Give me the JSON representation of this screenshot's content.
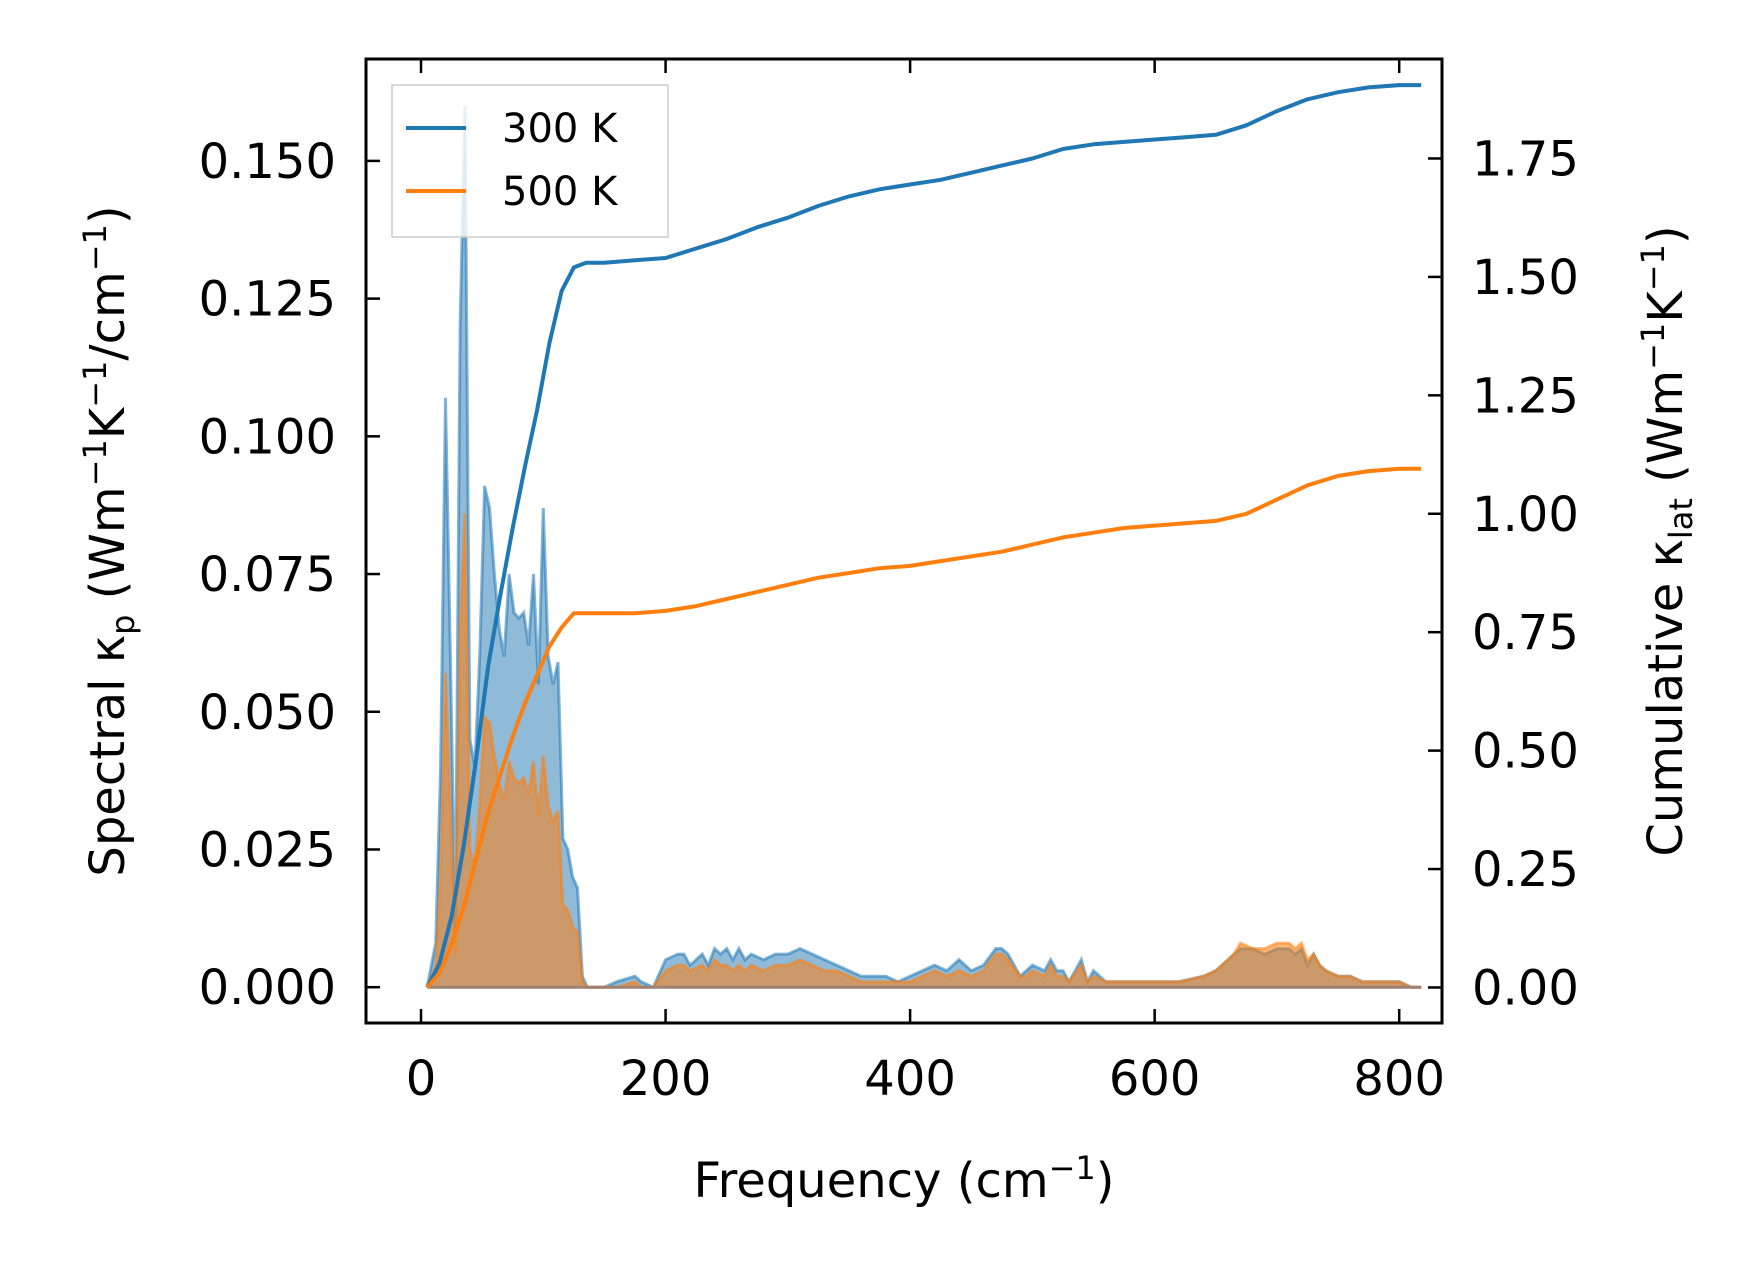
{
  "chart_data": {
    "type": "line",
    "xlabel": {
      "main": "Frequency (cm",
      "sup": "−1",
      "end": ")"
    },
    "ylabel_left": {
      "a": "Spectral κ",
      "sub_p": "p",
      "b": " (Wm",
      "sup1": "−1",
      "c": "K",
      "sup2": "−1",
      "d": "/cm",
      "sup3": "−1",
      "e": ")"
    },
    "ylabel_right": {
      "a": "Cumulative κ",
      "sub_lat": "lat",
      "b": " (Wm",
      "sup1": "−1",
      "c": "K",
      "sup2": "−1",
      "d": ")"
    },
    "xlim": [
      -45,
      835
    ],
    "ylim_left": [
      -0.0065,
      0.1685
    ],
    "ylim_right": [
      -0.075,
      1.96
    ],
    "x_ticks": [
      0,
      200,
      400,
      600,
      800
    ],
    "x_tick_labels": [
      "0",
      "200",
      "400",
      "600",
      "800"
    ],
    "y_left_ticks": [
      0.0,
      0.025,
      0.05,
      0.075,
      0.1,
      0.125,
      0.15
    ],
    "y_left_tick_labels": [
      "0.000",
      "0.025",
      "0.050",
      "0.075",
      "0.100",
      "0.125",
      "0.150"
    ],
    "y_right_ticks": [
      0.0,
      0.25,
      0.5,
      0.75,
      1.0,
      1.25,
      1.5,
      1.75
    ],
    "y_right_tick_labels": [
      "0.00",
      "0.25",
      "0.50",
      "0.75",
      "1.00",
      "1.25",
      "1.50",
      "1.75"
    ],
    "legend": {
      "position": "upper-left",
      "entries": [
        "300 K",
        "500 K"
      ]
    },
    "series": [
      {
        "name": "300 K",
        "color": "#1f77b4",
        "spectral": {
          "x": [
            5,
            12,
            16,
            20,
            24,
            28,
            32,
            36,
            40,
            44,
            48,
            52,
            56,
            60,
            64,
            68,
            72,
            76,
            80,
            84,
            88,
            92,
            96,
            100,
            104,
            108,
            112,
            116,
            120,
            124,
            128,
            132,
            136,
            140,
            150,
            160,
            175,
            180,
            190,
            200,
            210,
            215,
            220,
            230,
            235,
            240,
            245,
            250,
            255,
            260,
            265,
            270,
            280,
            290,
            300,
            310,
            320,
            330,
            340,
            350,
            360,
            370,
            380,
            390,
            400,
            410,
            420,
            430,
            440,
            450,
            460,
            470,
            475,
            480,
            490,
            495,
            500,
            510,
            515,
            520,
            525,
            530,
            540,
            545,
            550,
            560,
            580,
            600,
            620,
            640,
            650,
            660,
            665,
            670,
            680,
            690,
            700,
            710,
            715,
            720,
            725,
            730,
            735,
            740,
            750,
            760,
            770,
            780,
            790,
            800,
            810,
            818
          ],
          "y": [
            0.0,
            0.008,
            0.04,
            0.107,
            0.06,
            0.01,
            0.12,
            0.16,
            0.045,
            0.04,
            0.06,
            0.091,
            0.087,
            0.075,
            0.065,
            0.06,
            0.075,
            0.068,
            0.067,
            0.068,
            0.062,
            0.075,
            0.055,
            0.087,
            0.06,
            0.055,
            0.059,
            0.027,
            0.025,
            0.02,
            0.018,
            0.002,
            0.0,
            0.0,
            0.0,
            0.001,
            0.002,
            0.001,
            0.0,
            0.005,
            0.006,
            0.006,
            0.004,
            0.006,
            0.004,
            0.007,
            0.006,
            0.007,
            0.005,
            0.007,
            0.005,
            0.006,
            0.005,
            0.006,
            0.006,
            0.007,
            0.006,
            0.005,
            0.004,
            0.003,
            0.002,
            0.002,
            0.002,
            0.001,
            0.002,
            0.003,
            0.004,
            0.003,
            0.005,
            0.003,
            0.004,
            0.007,
            0.007,
            0.006,
            0.002,
            0.003,
            0.004,
            0.003,
            0.005,
            0.003,
            0.003,
            0.001,
            0.005,
            0.001,
            0.003,
            0.001,
            0.001,
            0.001,
            0.001,
            0.002,
            0.003,
            0.005,
            0.006,
            0.007,
            0.007,
            0.006,
            0.007,
            0.007,
            0.006,
            0.007,
            0.004,
            0.006,
            0.004,
            0.003,
            0.002,
            0.002,
            0.001,
            0.001,
            0.001,
            0.001,
            0.0,
            0.0
          ]
        },
        "cumulative": {
          "x": [
            5,
            15,
            25,
            35,
            45,
            55,
            65,
            75,
            85,
            95,
            105,
            115,
            125,
            135,
            150,
            175,
            200,
            225,
            250,
            275,
            300,
            325,
            350,
            375,
            400,
            425,
            450,
            475,
            500,
            525,
            550,
            575,
            600,
            625,
            650,
            675,
            700,
            725,
            750,
            775,
            800,
            818
          ],
          "y": [
            0.0,
            0.05,
            0.15,
            0.3,
            0.48,
            0.68,
            0.83,
            0.97,
            1.1,
            1.22,
            1.36,
            1.47,
            1.52,
            1.53,
            1.53,
            1.535,
            1.54,
            1.56,
            1.58,
            1.605,
            1.625,
            1.65,
            1.67,
            1.685,
            1.695,
            1.705,
            1.72,
            1.735,
            1.75,
            1.77,
            1.78,
            1.785,
            1.79,
            1.795,
            1.8,
            1.82,
            1.85,
            1.875,
            1.89,
            1.9,
            1.905,
            1.905
          ]
        }
      },
      {
        "name": "500 K",
        "color": "#ff7f0e",
        "spectral": {
          "x": [
            5,
            12,
            16,
            20,
            24,
            28,
            32,
            36,
            40,
            44,
            48,
            52,
            56,
            60,
            64,
            68,
            72,
            76,
            80,
            84,
            88,
            92,
            96,
            100,
            104,
            108,
            112,
            116,
            120,
            124,
            128,
            132,
            136,
            140,
            150,
            160,
            175,
            180,
            190,
            200,
            210,
            215,
            220,
            230,
            235,
            240,
            245,
            250,
            255,
            260,
            265,
            270,
            280,
            290,
            300,
            310,
            320,
            330,
            340,
            350,
            360,
            370,
            380,
            390,
            400,
            410,
            420,
            430,
            440,
            450,
            460,
            470,
            475,
            480,
            490,
            495,
            500,
            510,
            515,
            520,
            525,
            530,
            540,
            545,
            550,
            560,
            580,
            600,
            620,
            640,
            650,
            660,
            665,
            670,
            680,
            690,
            700,
            710,
            715,
            720,
            725,
            730,
            735,
            740,
            750,
            760,
            770,
            780,
            790,
            800,
            810,
            818
          ],
          "y": [
            0.0,
            0.004,
            0.02,
            0.057,
            0.032,
            0.006,
            0.065,
            0.086,
            0.025,
            0.022,
            0.033,
            0.049,
            0.048,
            0.042,
            0.037,
            0.034,
            0.041,
            0.038,
            0.037,
            0.038,
            0.035,
            0.041,
            0.031,
            0.042,
            0.033,
            0.03,
            0.032,
            0.015,
            0.014,
            0.011,
            0.01,
            0.001,
            0.0,
            0.0,
            0.0,
            0.0,
            0.001,
            0.0,
            0.0,
            0.003,
            0.004,
            0.004,
            0.003,
            0.004,
            0.003,
            0.005,
            0.004,
            0.004,
            0.003,
            0.004,
            0.003,
            0.004,
            0.003,
            0.004,
            0.004,
            0.005,
            0.004,
            0.003,
            0.003,
            0.002,
            0.001,
            0.001,
            0.001,
            0.001,
            0.001,
            0.002,
            0.003,
            0.002,
            0.003,
            0.002,
            0.003,
            0.006,
            0.006,
            0.005,
            0.002,
            0.002,
            0.003,
            0.002,
            0.004,
            0.002,
            0.002,
            0.001,
            0.004,
            0.001,
            0.002,
            0.001,
            0.001,
            0.001,
            0.001,
            0.002,
            0.003,
            0.005,
            0.006,
            0.008,
            0.007,
            0.007,
            0.008,
            0.008,
            0.007,
            0.008,
            0.005,
            0.006,
            0.004,
            0.003,
            0.002,
            0.002,
            0.001,
            0.001,
            0.001,
            0.001,
            0.0,
            0.0
          ]
        },
        "cumulative": {
          "x": [
            5,
            15,
            25,
            35,
            45,
            55,
            65,
            75,
            85,
            95,
            105,
            115,
            125,
            135,
            150,
            175,
            200,
            225,
            250,
            275,
            300,
            325,
            350,
            375,
            400,
            425,
            450,
            475,
            500,
            525,
            550,
            575,
            600,
            625,
            650,
            675,
            700,
            725,
            750,
            775,
            800,
            818
          ],
          "y": [
            0.0,
            0.03,
            0.09,
            0.17,
            0.27,
            0.37,
            0.45,
            0.53,
            0.6,
            0.66,
            0.72,
            0.76,
            0.79,
            0.79,
            0.79,
            0.79,
            0.795,
            0.805,
            0.82,
            0.835,
            0.85,
            0.865,
            0.875,
            0.885,
            0.89,
            0.9,
            0.91,
            0.92,
            0.935,
            0.95,
            0.96,
            0.97,
            0.975,
            0.98,
            0.985,
            1.0,
            1.03,
            1.06,
            1.08,
            1.09,
            1.095,
            1.095
          ]
        }
      }
    ]
  }
}
